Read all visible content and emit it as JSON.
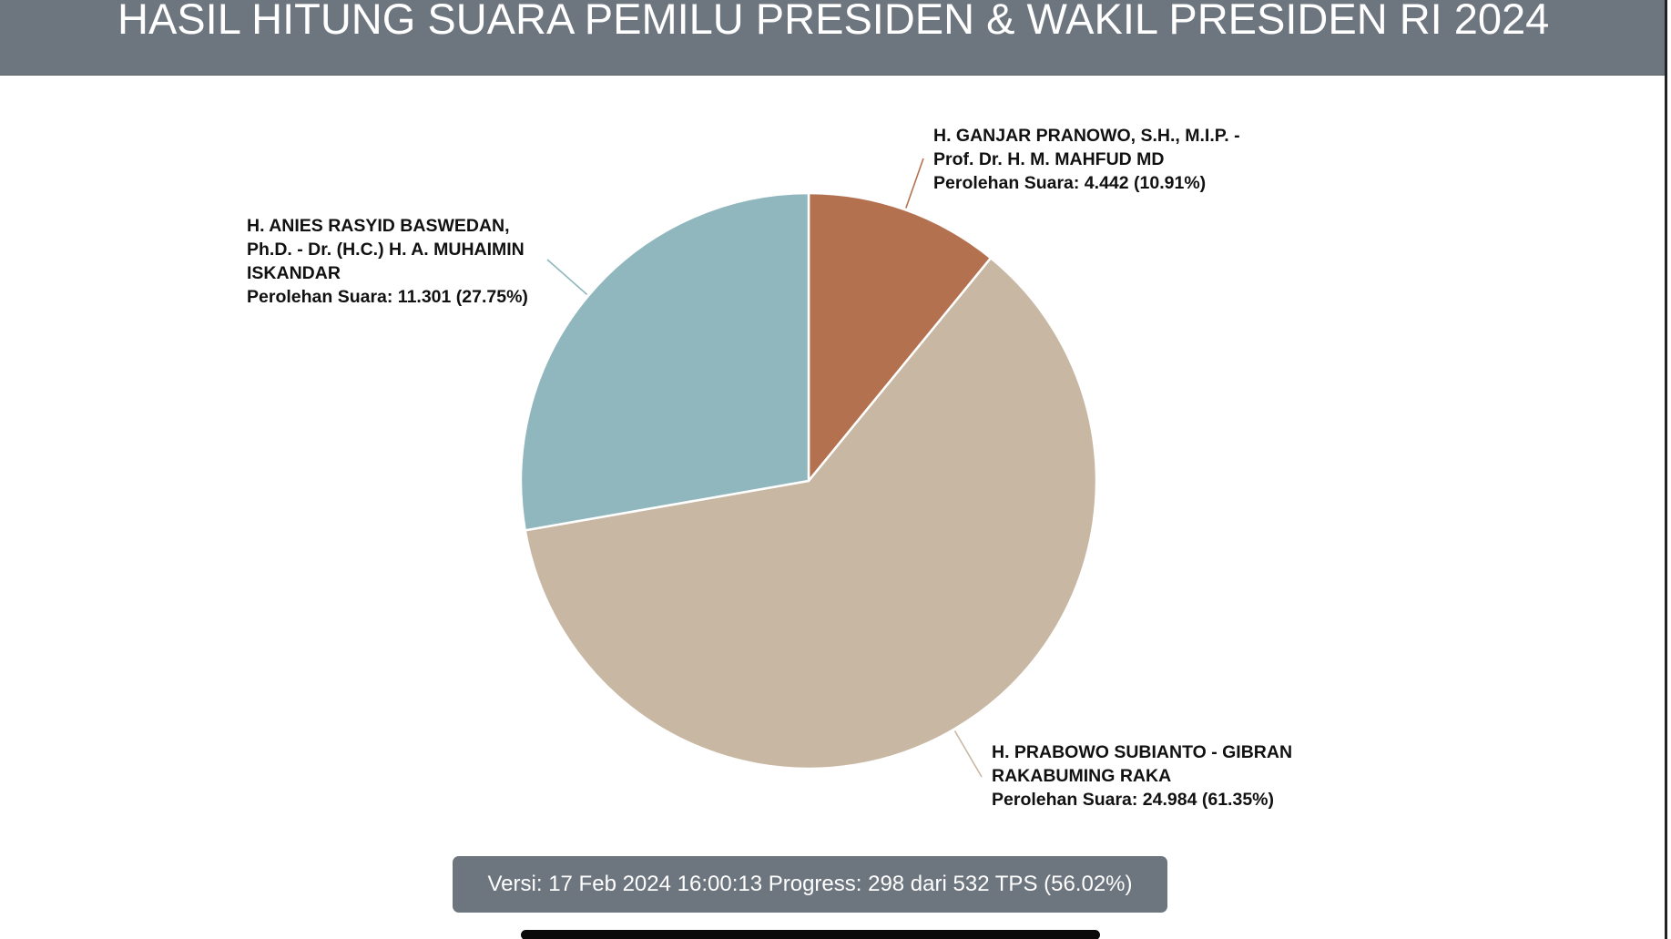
{
  "header": {
    "title": "HASIL HITUNG SUARA PEMILU PRESIDEN & WAKIL PRESIDEN RI 2024"
  },
  "chart_data": {
    "type": "pie",
    "title": "HASIL HITUNG SUARA PEMILU PRESIDEN & WAKIL PRESIDEN RI 2024",
    "slices": [
      {
        "name_lines": [
          "H. GANJAR PRANOWO, S.H., M.I.P. -",
          "Prof. Dr. H. M. MAHFUD MD"
        ],
        "value": 4442,
        "percent": 10.91,
        "vote_text": "Perolehan Suara: 4.442 (10.91%)",
        "color": "#b47150"
      },
      {
        "name_lines": [
          "H. PRABOWO SUBIANTO - GIBRAN",
          "RAKABUMING RAKA"
        ],
        "value": 24984,
        "percent": 61.35,
        "vote_text": "Perolehan Suara: 24.984 (61.35%)",
        "color": "#c8b8a3"
      },
      {
        "name_lines": [
          "H. ANIES RASYID BASWEDAN,",
          "Ph.D. - Dr. (H.C.) H. A. MUHAIMIN",
          "ISKANDAR"
        ],
        "value": 11301,
        "percent": 27.75,
        "vote_text": "Perolehan Suara: 11.301 (27.75%)",
        "color": "#8fb7bd"
      }
    ],
    "start_angle_deg": 0,
    "direction": "clockwise",
    "legend": "none"
  },
  "footer": {
    "version_text": "Versi: 17 Feb 2024 16:00:13 Progress: 298 dari 532 TPS (56.02%)"
  }
}
